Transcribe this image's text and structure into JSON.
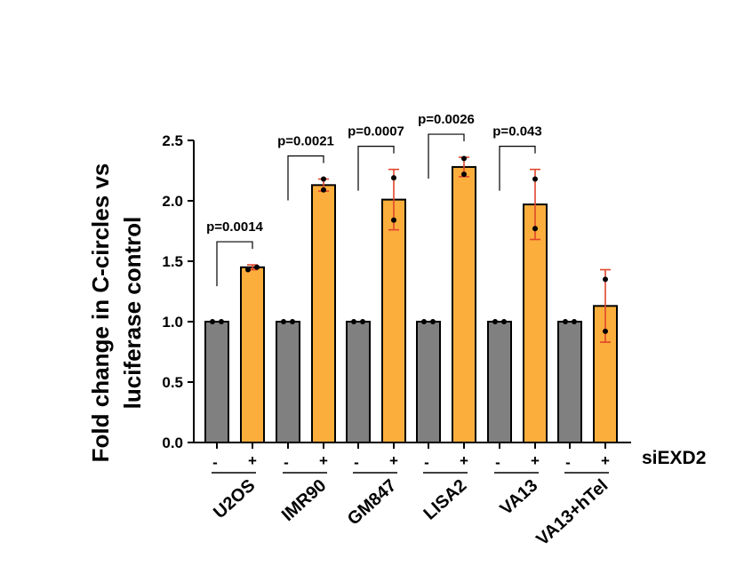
{
  "chart_data": {
    "type": "bar",
    "ylabel_line1": "Fold change in C-circles vs",
    "ylabel_line2": "luciferase control",
    "ylim": [
      0,
      2.5
    ],
    "yticks": [
      "0.0",
      "0.5",
      "1.0",
      "1.5",
      "2.0",
      "2.5"
    ],
    "treatment_label": "siEXD2",
    "minus_label": "-",
    "plus_label": "+",
    "colors": {
      "control": "#808080",
      "treated": "#FBAE3C",
      "error": "#E0452B",
      "point": "#000000"
    },
    "groups": [
      {
        "name": "U2OS",
        "control": 1.0,
        "treated": 1.45,
        "treated_err": 0.02,
        "control_points": [
          1.0,
          1.0
        ],
        "treated_points": [
          1.43,
          1.45
        ],
        "pvalue": "p=0.0014"
      },
      {
        "name": "IMR90",
        "control": 1.0,
        "treated": 2.13,
        "treated_err": 0.05,
        "control_points": [
          1.0,
          1.0
        ],
        "treated_points": [
          2.09,
          2.18
        ],
        "pvalue": "p=0.0021"
      },
      {
        "name": "GM847",
        "control": 1.0,
        "treated": 2.01,
        "treated_err": 0.25,
        "control_points": [
          1.0,
          1.0
        ],
        "treated_points": [
          1.84,
          2.19
        ],
        "pvalue": "p=0.0007"
      },
      {
        "name": "LISA2",
        "control": 1.0,
        "treated": 2.28,
        "treated_err": 0.08,
        "control_points": [
          1.0,
          1.0
        ],
        "treated_points": [
          2.22,
          2.35
        ],
        "pvalue": "p=0.0026"
      },
      {
        "name": "VA13",
        "control": 1.0,
        "treated": 1.97,
        "treated_err": 0.29,
        "control_points": [
          1.0,
          1.0
        ],
        "treated_points": [
          1.77,
          2.18
        ],
        "pvalue": "p=0.043"
      },
      {
        "name": "VA13+hTel",
        "control": 1.0,
        "treated": 1.13,
        "treated_err": 0.3,
        "control_points": [
          1.0,
          1.0
        ],
        "treated_points": [
          0.92,
          1.35
        ],
        "pvalue": ""
      }
    ]
  }
}
